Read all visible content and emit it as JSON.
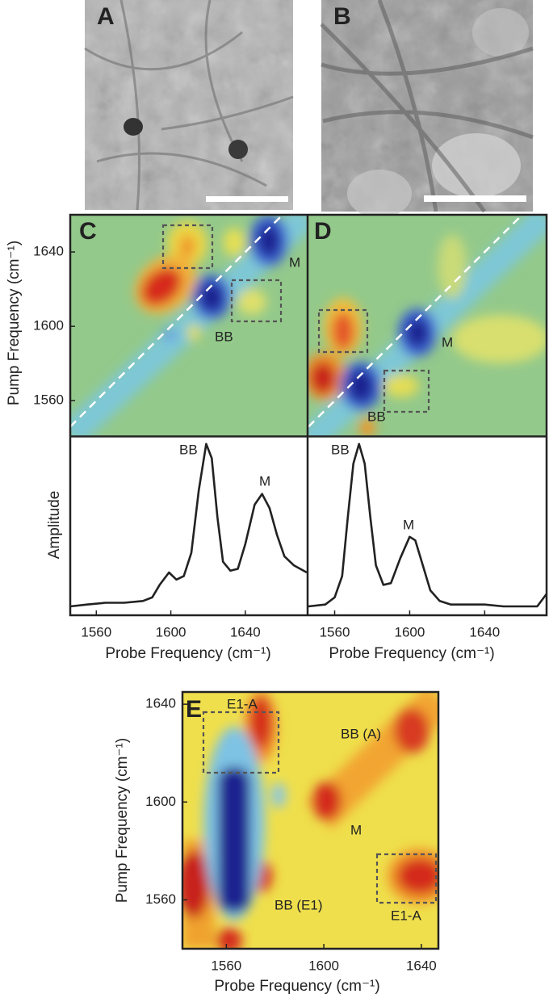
{
  "chart_data": [
    {
      "type": "image",
      "label": "A"
    },
    {
      "type": "image",
      "label": "B"
    },
    {
      "type": "contour",
      "label": "C",
      "ylabel": "Pump Frequency (cm⁻¹)",
      "xlim": [
        1546,
        1673
      ],
      "ylim": [
        1541,
        1660
      ],
      "yticks": [
        1560,
        1600,
        1640
      ],
      "annotations": [
        "BB",
        "M"
      ]
    },
    {
      "type": "contour",
      "label": "D",
      "xlim": [
        1546,
        1673
      ],
      "ylim": [
        1541,
        1660
      ],
      "annotations": [
        "BB",
        "M"
      ]
    },
    {
      "type": "line",
      "ylabel": "Amplitude",
      "xlabel": "Probe Frequency (cm⁻¹)",
      "xlim": [
        1546,
        1673
      ],
      "ylim": [
        0,
        1
      ],
      "xticks": [
        1560,
        1600,
        1640
      ],
      "color": "#222222",
      "annotations": [
        "BB",
        "M"
      ],
      "x": [
        1546,
        1555,
        1565,
        1575,
        1585,
        1590,
        1594,
        1599,
        1603,
        1607,
        1611,
        1615,
        1619,
        1622,
        1625,
        1628,
        1632,
        1636,
        1640,
        1645,
        1649,
        1653,
        1657,
        1661,
        1666,
        1673
      ],
      "values": [
        0.05,
        0.06,
        0.07,
        0.07,
        0.08,
        0.1,
        0.17,
        0.24,
        0.2,
        0.22,
        0.35,
        0.7,
        0.96,
        0.88,
        0.55,
        0.3,
        0.25,
        0.26,
        0.4,
        0.62,
        0.68,
        0.6,
        0.45,
        0.33,
        0.28,
        0.24
      ]
    },
    {
      "type": "line",
      "xlabel": "Probe Frequency (cm⁻¹)",
      "xlim": [
        1546,
        1673
      ],
      "ylim": [
        0,
        1
      ],
      "xticks": [
        1560,
        1600,
        1640
      ],
      "color": "#222222",
      "annotations": [
        "BB",
        "M"
      ],
      "x": [
        1546,
        1555,
        1560,
        1564,
        1567,
        1570,
        1573,
        1576,
        1579,
        1582,
        1586,
        1590,
        1595,
        1600,
        1603,
        1607,
        1611,
        1616,
        1622,
        1630,
        1640,
        1650,
        1660,
        1668,
        1673
      ],
      "values": [
        0.05,
        0.06,
        0.1,
        0.22,
        0.55,
        0.85,
        0.96,
        0.85,
        0.55,
        0.28,
        0.17,
        0.18,
        0.32,
        0.44,
        0.42,
        0.28,
        0.14,
        0.08,
        0.06,
        0.06,
        0.06,
        0.05,
        0.05,
        0.05,
        0.12
      ]
    },
    {
      "type": "contour",
      "label": "E",
      "xlabel": "Probe Frequency (cm⁻¹)",
      "ylabel": "Pump Frequency (cm⁻¹)",
      "xlim": [
        1542,
        1647
      ],
      "ylim": [
        1540,
        1645
      ],
      "xticks": [
        1560,
        1600,
        1640
      ],
      "yticks": [
        1560,
        1600,
        1640
      ],
      "annotations": [
        "E1-A",
        "BB (A)",
        "M",
        "BB (E1)",
        "E1-A"
      ]
    }
  ]
}
